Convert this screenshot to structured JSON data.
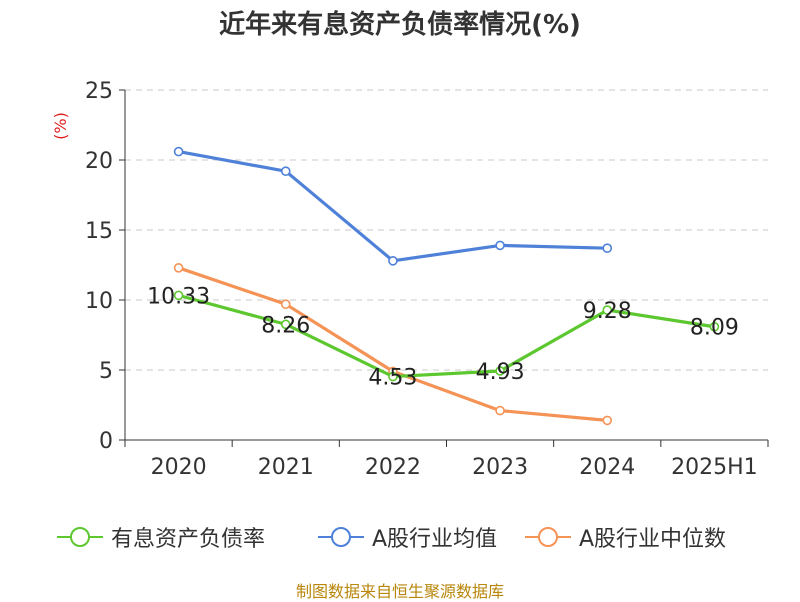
{
  "chart_data": {
    "type": "line",
    "title": "近年来有息资产负债率情况(%)",
    "ylabel": "(%)",
    "xlabel": "",
    "categories": [
      "2020",
      "2021",
      "2022",
      "2023",
      "2024",
      "2025H1"
    ],
    "ylim": [
      0,
      25
    ],
    "yticks": [
      0,
      5,
      10,
      15,
      20,
      25
    ],
    "grid": true,
    "legend_position": "bottom",
    "series": [
      {
        "name": "有息资产负债率",
        "color": "#5cc72e",
        "values": [
          10.33,
          8.26,
          4.53,
          4.93,
          9.28,
          8.09
        ],
        "labels": [
          "10.33",
          "8.26",
          "4.53",
          "4.93",
          "9.28",
          "8.09"
        ]
      },
      {
        "name": "A股行业均值",
        "color": "#4f81d9",
        "values": [
          20.6,
          19.2,
          12.8,
          13.9,
          13.7,
          null
        ]
      },
      {
        "name": "A股行业中位数",
        "color": "#f59357",
        "values": [
          12.3,
          9.7,
          4.9,
          2.1,
          1.4,
          null
        ]
      }
    ]
  },
  "source": "制图数据来自恒生聚源数据库"
}
